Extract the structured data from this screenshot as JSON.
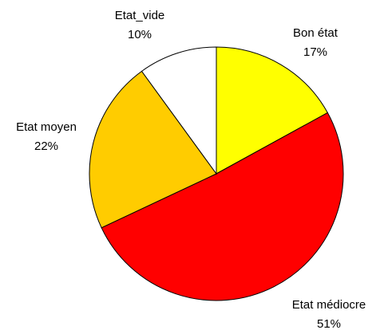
{
  "chart_data": {
    "type": "pie",
    "categories": [
      "Bon état",
      "Etat médiocre",
      "Etat moyen",
      "Etat_vide"
    ],
    "values": [
      17,
      51,
      22,
      10
    ],
    "value_labels": [
      "17%",
      "51%",
      "22%",
      "10%"
    ],
    "colors": [
      "#ffff00",
      "#ff0000",
      "#ffcc00",
      "#ffffff"
    ]
  }
}
